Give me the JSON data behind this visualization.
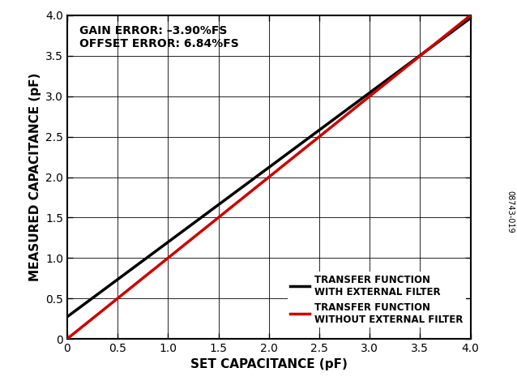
{
  "title": "",
  "xlabel": "SET CAPACITANCE (pF)",
  "ylabel": "MEASURED CAPACITANCE (pF)",
  "xlim": [
    0,
    4.0
  ],
  "ylim": [
    0,
    4.0
  ],
  "xticks": [
    0,
    0.5,
    1.0,
    1.5,
    2.0,
    2.5,
    3.0,
    3.5,
    4.0
  ],
  "yticks": [
    0,
    0.5,
    1.0,
    1.5,
    2.0,
    2.5,
    3.0,
    3.5,
    4.0
  ],
  "black_line": {
    "x": [
      0,
      4.0
    ],
    "y": [
      0.2724,
      3.9669
    ],
    "color": "#000000",
    "linewidth": 2.5,
    "label": "TRANSFER FUNCTION\nWITH EXTERNAL FILTER"
  },
  "red_line": {
    "x": [
      0,
      4.0
    ],
    "y": [
      0.0,
      4.0
    ],
    "color": "#cc0000",
    "linewidth": 2.5,
    "label": "TRANSFER FUNCTION\nWITHOUT EXTERNAL FILTER"
  },
  "annotation_text": "GAIN ERROR: –3.90%FS\nOFFSET ERROR: 6.84%FS",
  "side_label": "08743-019",
  "background_color": "#ffffff",
  "grid_color": "#000000",
  "legend_fontsize": 8.5,
  "axis_label_fontsize": 11,
  "tick_fontsize": 10,
  "annotation_fontsize": 10
}
